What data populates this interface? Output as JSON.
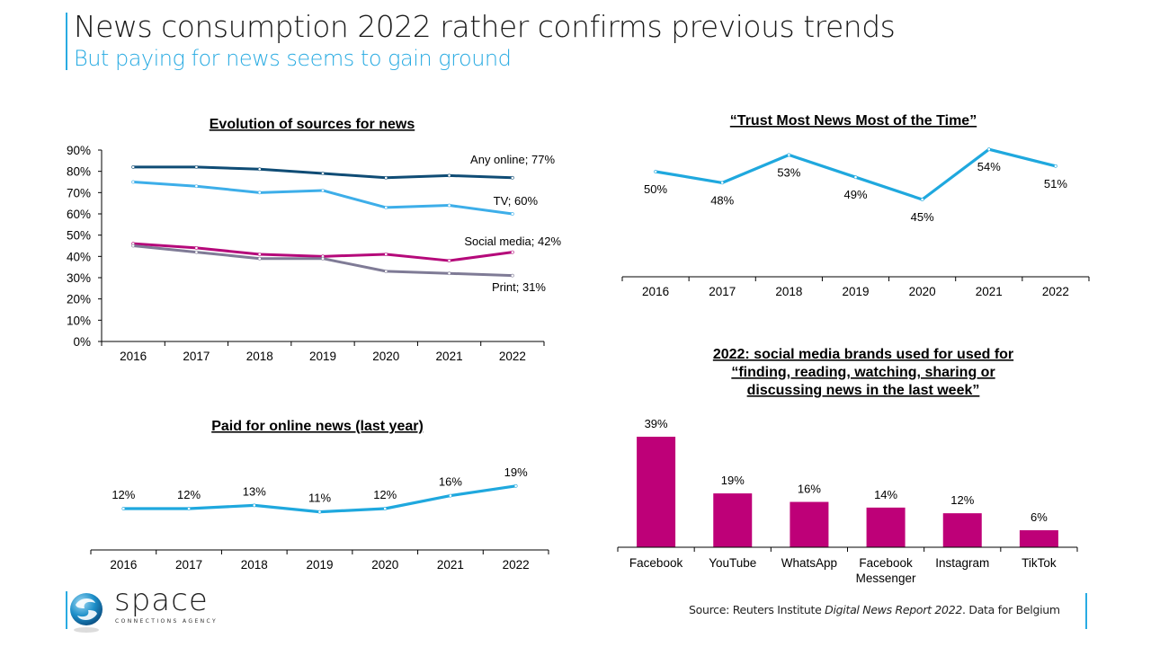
{
  "header": {
    "title": "News consumption 2022 rather confirms previous trends",
    "subtitle": "But paying for news seems to gain ground"
  },
  "footer": {
    "source_prefix": "Source: Reuters Institute ",
    "source_italic": "Digital News Report 2022",
    "source_suffix": ". Data for Belgium",
    "logo_word": "space",
    "logo_tagline": "CONNECTIONS AGENCY"
  },
  "colors": {
    "accent": "#29abe2",
    "any_online": "#0f4c75",
    "tv": "#3daee9",
    "social_media": "#b5097a",
    "print": "#7f7b96",
    "bars": "#be0078",
    "trust_line": "#1fa8de"
  },
  "chart_data": [
    {
      "id": "sources",
      "type": "line",
      "title": "Evolution of sources for news",
      "x": [
        "2016",
        "2017",
        "2018",
        "2019",
        "2020",
        "2021",
        "2022"
      ],
      "ylim": [
        0,
        90
      ],
      "yticks": [
        "0%",
        "10%",
        "20%",
        "30%",
        "40%",
        "50%",
        "60%",
        "70%",
        "80%",
        "90%"
      ],
      "xlabel": "",
      "ylabel": "",
      "grid": false,
      "series": [
        {
          "name": "Any online",
          "end_label": "Any online; 77%",
          "values": [
            82,
            82,
            81,
            79,
            77,
            78,
            77
          ]
        },
        {
          "name": "TV",
          "end_label": "TV; 60%",
          "values": [
            75,
            73,
            70,
            71,
            63,
            64,
            60
          ]
        },
        {
          "name": "Social media",
          "end_label": "Social media; 42%",
          "values": [
            46,
            44,
            41,
            40,
            41,
            38,
            42
          ]
        },
        {
          "name": "Print",
          "end_label": "Print; 31%",
          "values": [
            45,
            42,
            39,
            39,
            33,
            32,
            31
          ]
        }
      ]
    },
    {
      "id": "trust",
      "type": "line",
      "title": "“Trust Most News Most of the Time”",
      "x": [
        "2016",
        "2017",
        "2018",
        "2019",
        "2020",
        "2021",
        "2022"
      ],
      "values": [
        50,
        48,
        53,
        49,
        45,
        54,
        51
      ],
      "labels": [
        "50%",
        "48%",
        "53%",
        "49%",
        "45%",
        "54%",
        "51%"
      ],
      "ylim": [
        0,
        60
      ],
      "grid": false
    },
    {
      "id": "paid",
      "type": "line",
      "title": "Paid for online news (last year)",
      "x": [
        "2016",
        "2017",
        "2018",
        "2019",
        "2020",
        "2021",
        "2022"
      ],
      "values": [
        12,
        12,
        13,
        11,
        12,
        16,
        19
      ],
      "labels": [
        "12%",
        "12%",
        "13%",
        "11%",
        "12%",
        "16%",
        "19%"
      ],
      "ylim": [
        0,
        25
      ],
      "grid": false
    },
    {
      "id": "brands",
      "type": "bar",
      "title_lines": [
        "2022: social media brands used for used for",
        "“finding, reading, watching, sharing or",
        "discussing news in the last week”"
      ],
      "categories": [
        "Facebook",
        "YouTube",
        "WhatsApp",
        "Facebook Messenger",
        "Instagram",
        "TikTok"
      ],
      "category_lines": [
        [
          "Facebook"
        ],
        [
          "YouTube"
        ],
        [
          "WhatsApp"
        ],
        [
          "Facebook",
          "Messenger"
        ],
        [
          "Instagram"
        ],
        [
          "TikTok"
        ]
      ],
      "values": [
        39,
        19,
        16,
        14,
        12,
        6
      ],
      "labels": [
        "39%",
        "19%",
        "16%",
        "14%",
        "12%",
        "6%"
      ],
      "ylim": [
        0,
        40
      ]
    }
  ]
}
